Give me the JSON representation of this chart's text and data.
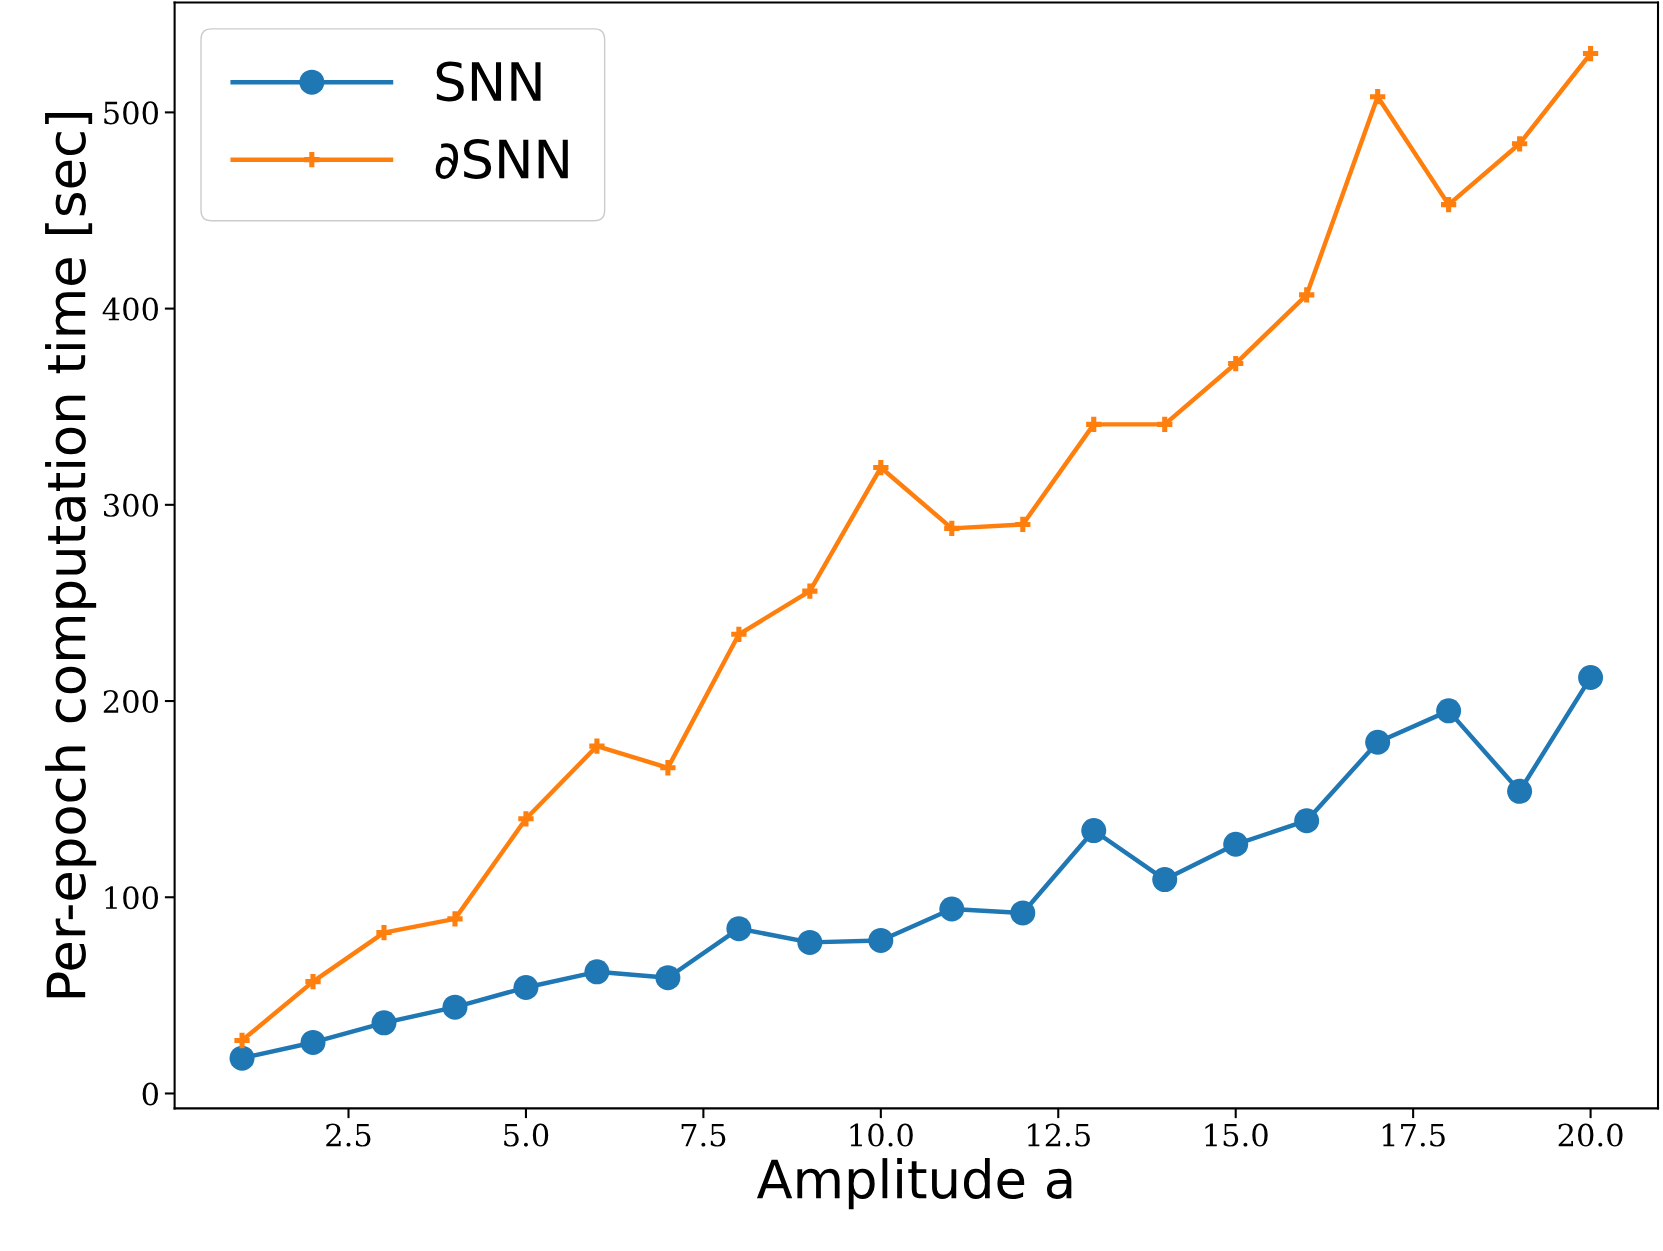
{
  "chart_data": {
    "type": "line",
    "xlabel": "Amplitude a",
    "ylabel": "Per-epoch computation time [sec]",
    "x": [
      1,
      2,
      3,
      4,
      5,
      6,
      7,
      8,
      9,
      10,
      11,
      12,
      13,
      14,
      15,
      16,
      17,
      18,
      19,
      20
    ],
    "series": [
      {
        "name": "SNN",
        "color": "#1f77b4",
        "marker": "circle",
        "values": [
          18,
          26,
          36,
          44,
          54,
          62,
          59,
          84,
          77,
          78,
          94,
          92,
          134,
          109,
          127,
          139,
          179,
          195,
          154,
          212
        ]
      },
      {
        "name": "∂SNN",
        "color": "#ff7f0e",
        "marker": "cross",
        "values": [
          27,
          57,
          82,
          89,
          140,
          177,
          166,
          234,
          256,
          319,
          288,
          290,
          341,
          341,
          372,
          407,
          508,
          453,
          484,
          530
        ]
      }
    ],
    "xlim": [
      0.05,
      20.95
    ],
    "ylim": [
      -7.6,
      556
    ],
    "xticks": [
      {
        "value": 2.5,
        "label": "2.5"
      },
      {
        "value": 5,
        "label": "5.0"
      },
      {
        "value": 7.5,
        "label": "7.5"
      },
      {
        "value": 10,
        "label": "10.0"
      },
      {
        "value": 12.5,
        "label": "12.5"
      },
      {
        "value": 15,
        "label": "15.0"
      },
      {
        "value": 17.5,
        "label": "17.5"
      },
      {
        "value": 20,
        "label": "20.0"
      }
    ],
    "yticks": [
      0,
      100,
      200,
      300,
      400,
      500
    ],
    "grid": false,
    "legend": "top left",
    "line_style": "solid"
  }
}
